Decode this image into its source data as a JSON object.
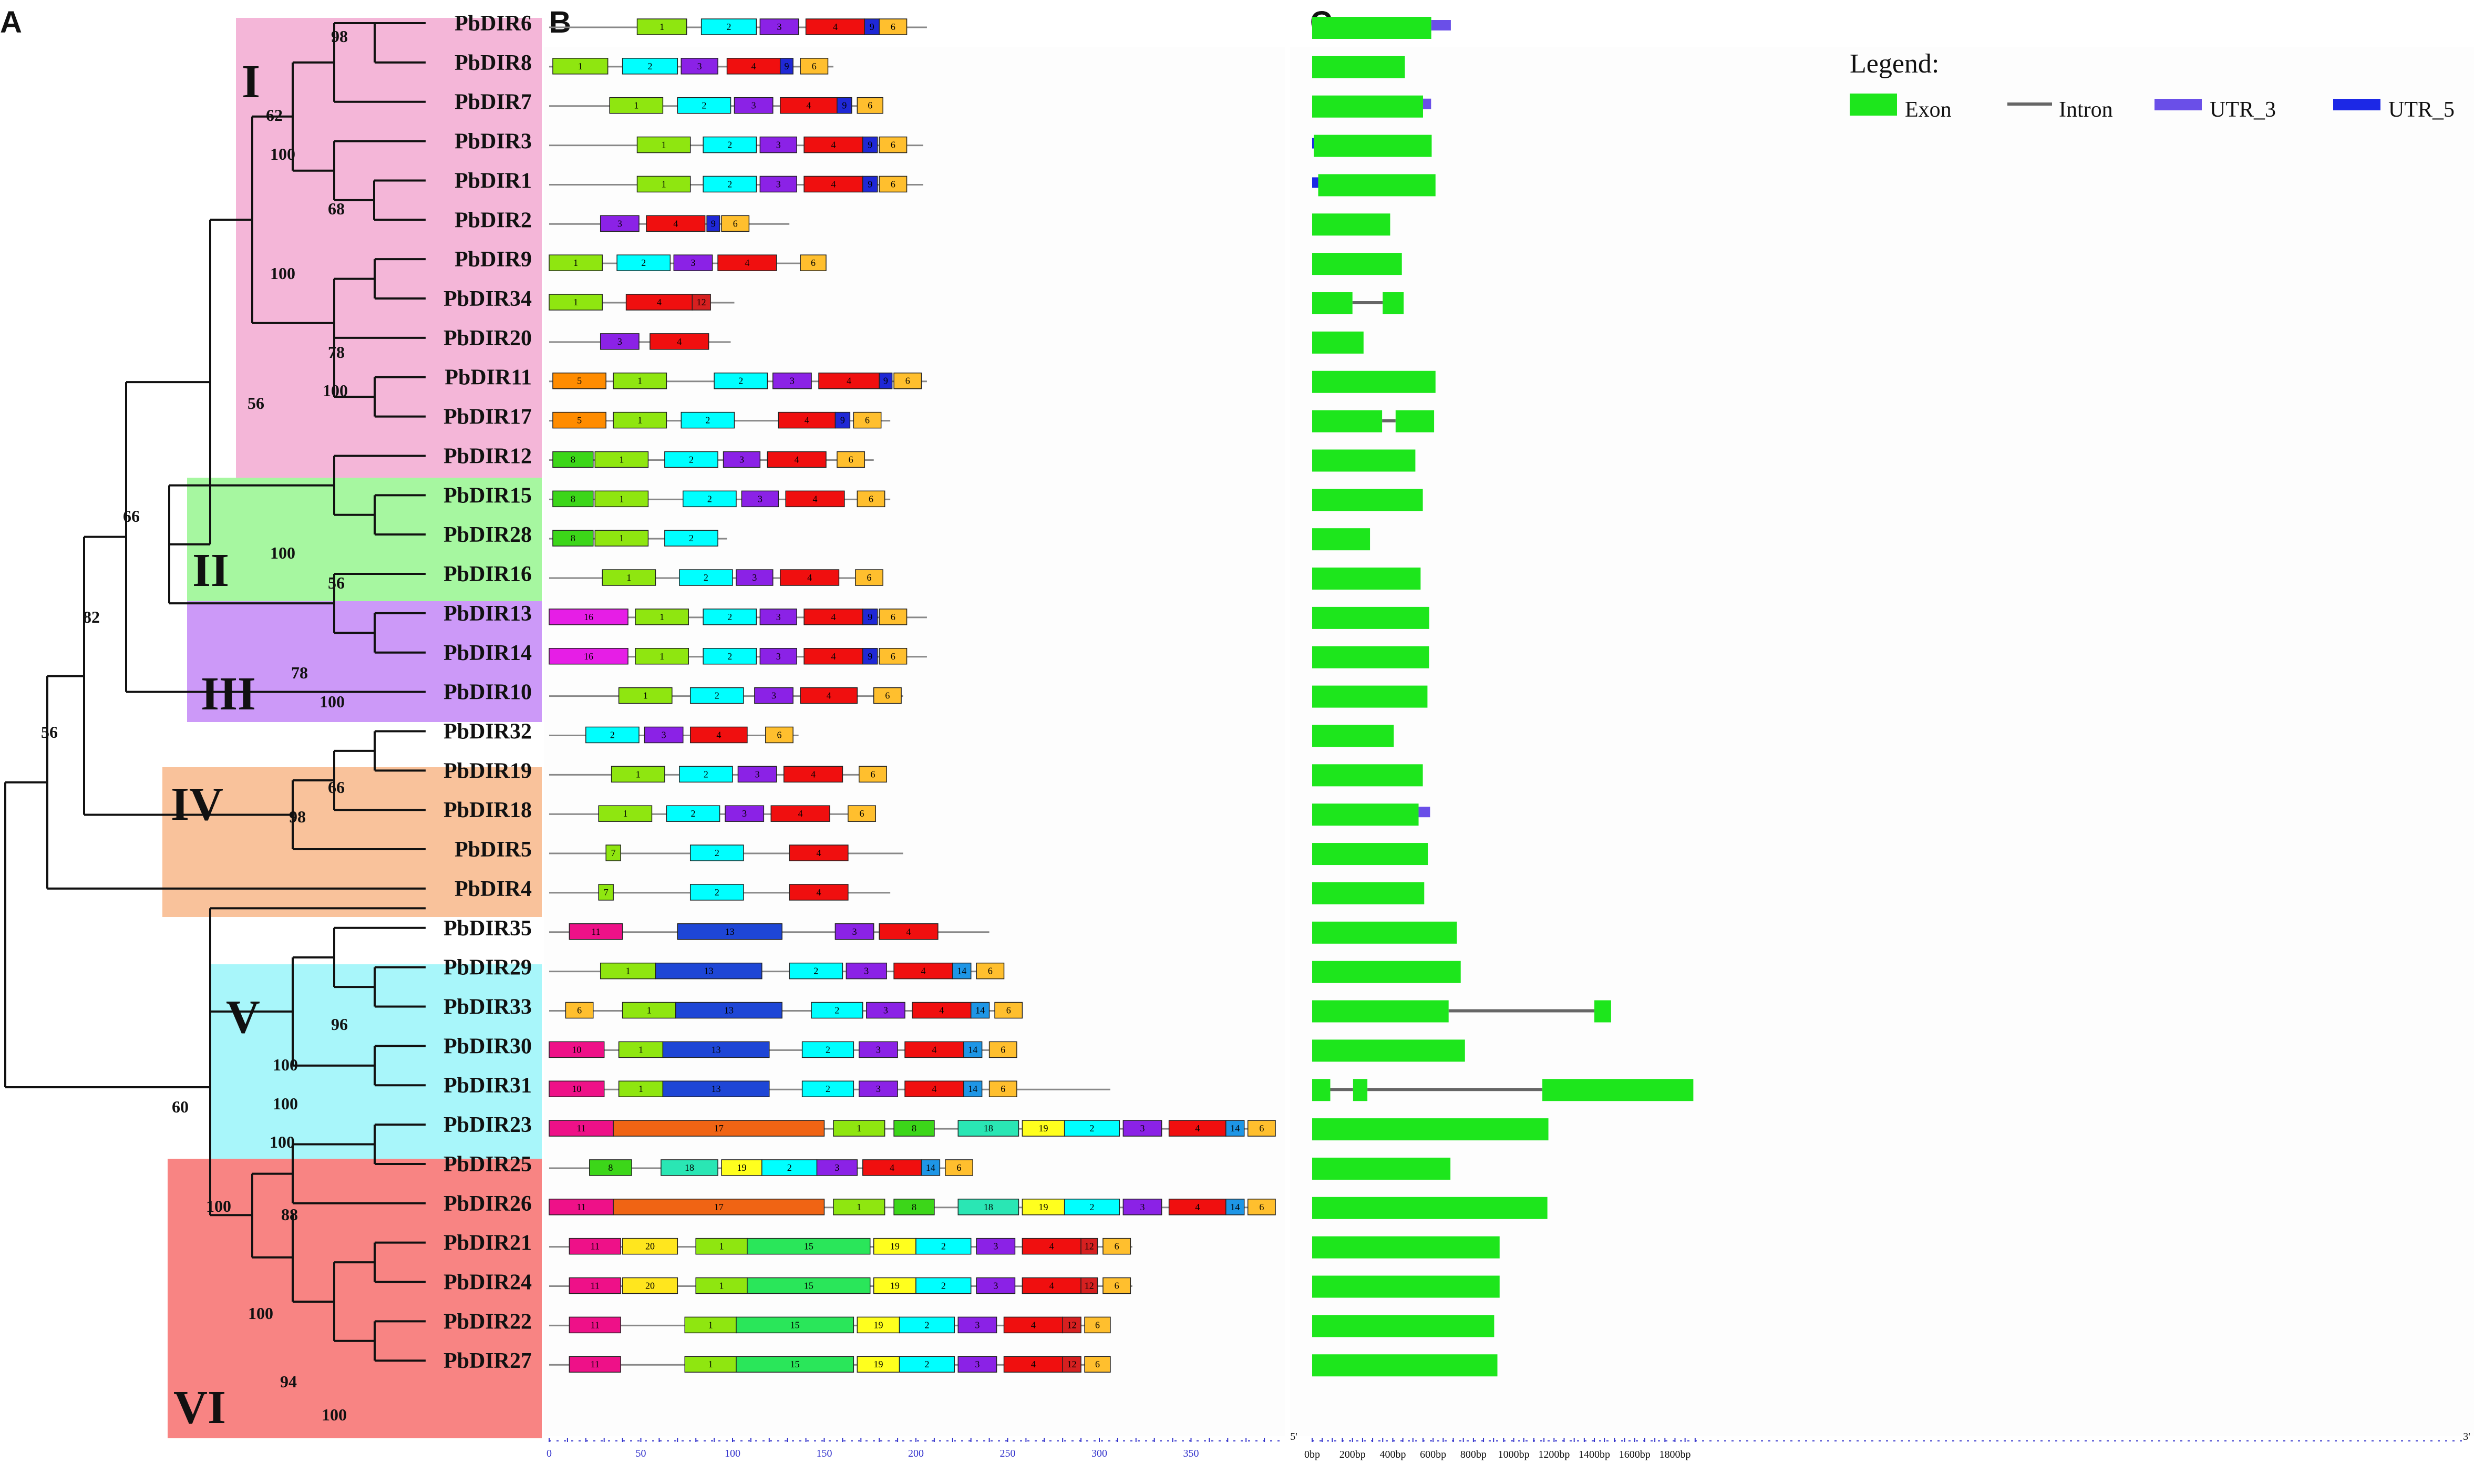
{
  "panels": {
    "a": "A",
    "b": "B",
    "c": "C"
  },
  "groups": [
    "I",
    "II",
    "III",
    "IV",
    "V",
    "VI"
  ],
  "groupColors": {
    "I": "#f4b6d8",
    "II": "#a6f7a0",
    "III": "#cc99f8",
    "IV": "#f9c29b",
    "V": "#a8f6fa",
    "VI": "#f88483"
  },
  "taxa": [
    "PbDIR6",
    "PbDIR8",
    "PbDIR7",
    "PbDIR3",
    "PbDIR1",
    "PbDIR2",
    "PbDIR9",
    "PbDIR34",
    "PbDIR20",
    "PbDIR11",
    "PbDIR17",
    "PbDIR12",
    "PbDIR15",
    "PbDIR28",
    "PbDIR16",
    "PbDIR13",
    "PbDIR14",
    "PbDIR10",
    "PbDIR32",
    "PbDIR19",
    "PbDIR18",
    "PbDIR5",
    "PbDIR4",
    "PbDIR35",
    "PbDIR29",
    "PbDIR33",
    "PbDIR30",
    "PbDIR31",
    "PbDIR23",
    "PbDIR25",
    "PbDIR26",
    "PbDIR21",
    "PbDIR24",
    "PbDIR22",
    "PbDIR27"
  ],
  "bootstrap": [
    "98",
    "62",
    "100",
    "68",
    "100",
    "56",
    "78",
    "100",
    "66",
    "100",
    "56",
    "82",
    "78",
    "100",
    "56",
    "66",
    "98",
    "96",
    "100",
    "100",
    "100",
    "60",
    "100",
    "88",
    "100",
    "94",
    "100"
  ],
  "motifColors": {
    "1": "#8fe610",
    "2": "#00ffff",
    "3": "#8b22e6",
    "4": "#f00f0f",
    "5": "#ff8c00",
    "6": "#ffbf2e",
    "7": "#8fe610",
    "8": "#3cd619",
    "9": "#1f28d6",
    "10": "#ee1188",
    "11": "#ee1188",
    "12": "#d62020",
    "13": "#1e46d6",
    "14": "#1e96e6",
    "15": "#2ae65a",
    "16": "#e61ee6",
    "17": "#f06414",
    "18": "#2ae6b4",
    "19": "#ffff1e",
    "20": "#ffe61e"
  },
  "motifs": [
    [
      [
        0,
        206
      ],
      [
        48,
        75,
        "1"
      ],
      [
        83,
        113,
        "2"
      ],
      [
        115,
        136,
        "3"
      ],
      [
        140,
        172,
        "4"
      ],
      [
        172,
        180,
        "9"
      ],
      [
        180,
        195,
        "6"
      ]
    ],
    [
      [
        0,
        155
      ],
      [
        2,
        32,
        "1"
      ],
      [
        40,
        70,
        "2"
      ],
      [
        72,
        92,
        "3"
      ],
      [
        97,
        126,
        "4"
      ],
      [
        126,
        133,
        "9"
      ],
      [
        137,
        152,
        "6"
      ]
    ],
    [
      [
        0,
        180
      ],
      [
        33,
        62,
        "1"
      ],
      [
        70,
        99,
        "2"
      ],
      [
        101,
        122,
        "3"
      ],
      [
        126,
        157,
        "4"
      ],
      [
        157,
        165,
        "9"
      ],
      [
        168,
        182,
        "6"
      ]
    ],
    [
      [
        0,
        204
      ],
      [
        48,
        77,
        "1"
      ],
      [
        84,
        113,
        "2"
      ],
      [
        115,
        135,
        "3"
      ],
      [
        139,
        171,
        "4"
      ],
      [
        171,
        179,
        "9"
      ],
      [
        180,
        195,
        "6"
      ]
    ],
    [
      [
        0,
        204
      ],
      [
        48,
        77,
        "1"
      ],
      [
        84,
        113,
        "2"
      ],
      [
        115,
        135,
        "3"
      ],
      [
        139,
        171,
        "4"
      ],
      [
        171,
        179,
        "9"
      ],
      [
        180,
        195,
        "6"
      ]
    ],
    [
      [
        0,
        131
      ],
      [
        28,
        49,
        "3"
      ],
      [
        53,
        85,
        "4"
      ],
      [
        86,
        93,
        "9"
      ],
      [
        94,
        109,
        "6"
      ]
    ],
    [
      [
        0,
        150
      ],
      [
        0,
        29,
        "1"
      ],
      [
        37,
        66,
        "2"
      ],
      [
        68,
        89,
        "3"
      ],
      [
        92,
        124,
        "4"
      ],
      [
        137,
        151,
        "6"
      ]
    ],
    [
      [
        0,
        101
      ],
      [
        0,
        29,
        "1"
      ],
      [
        42,
        78,
        "4"
      ],
      [
        78,
        88,
        "12"
      ]
    ],
    [
      [
        0,
        99
      ],
      [
        28,
        49,
        "3"
      ],
      [
        55,
        87,
        "4"
      ]
    ],
    [
      [
        0,
        206
      ],
      [
        2,
        31,
        "5"
      ],
      [
        35,
        64,
        "1"
      ],
      [
        90,
        119,
        "2"
      ],
      [
        122,
        143,
        "3"
      ],
      [
        147,
        180,
        "4"
      ],
      [
        180,
        187,
        "9"
      ],
      [
        188,
        203,
        "6"
      ]
    ],
    [
      [
        0,
        186
      ],
      [
        2,
        31,
        "5"
      ],
      [
        35,
        64,
        "1"
      ],
      [
        72,
        101,
        "2"
      ],
      [
        125,
        156,
        "4"
      ],
      [
        156,
        164,
        "9"
      ],
      [
        166,
        181,
        "6"
      ]
    ],
    [
      [
        0,
        177
      ],
      [
        2,
        24,
        "8"
      ],
      [
        25,
        54,
        "1"
      ],
      [
        63,
        92,
        "2"
      ],
      [
        95,
        115,
        "3"
      ],
      [
        119,
        151,
        "4"
      ],
      [
        157,
        172,
        "6"
      ]
    ],
    [
      [
        0,
        186
      ],
      [
        2,
        24,
        "8"
      ],
      [
        25,
        54,
        "1"
      ],
      [
        73,
        102,
        "2"
      ],
      [
        105,
        125,
        "3"
      ],
      [
        129,
        161,
        "4"
      ],
      [
        168,
        183,
        "6"
      ]
    ],
    [
      [
        0,
        97
      ],
      [
        2,
        24,
        "8"
      ],
      [
        25,
        54,
        "1"
      ],
      [
        63,
        92,
        "2"
      ]
    ],
    [
      [
        0,
        180
      ],
      [
        29,
        58,
        "1"
      ],
      [
        71,
        100,
        "2"
      ],
      [
        102,
        122,
        "3"
      ],
      [
        126,
        158,
        "4"
      ],
      [
        167,
        182,
        "6"
      ]
    ],
    [
      [
        0,
        206
      ],
      [
        0,
        43,
        "16"
      ],
      [
        47,
        76,
        "1"
      ],
      [
        84,
        113,
        "2"
      ],
      [
        115,
        135,
        "3"
      ],
      [
        139,
        171,
        "4"
      ],
      [
        171,
        179,
        "9"
      ],
      [
        180,
        195,
        "6"
      ]
    ],
    [
      [
        0,
        206
      ],
      [
        0,
        43,
        "16"
      ],
      [
        47,
        76,
        "1"
      ],
      [
        84,
        113,
        "2"
      ],
      [
        115,
        135,
        "3"
      ],
      [
        139,
        171,
        "4"
      ],
      [
        171,
        179,
        "9"
      ],
      [
        180,
        195,
        "6"
      ]
    ],
    [
      [
        0,
        193
      ],
      [
        38,
        67,
        "1"
      ],
      [
        77,
        106,
        "2"
      ],
      [
        112,
        133,
        "3"
      ],
      [
        137,
        168,
        "4"
      ],
      [
        177,
        192,
        "6"
      ]
    ],
    [
      [
        0,
        136
      ],
      [
        20,
        49,
        "2"
      ],
      [
        52,
        73,
        "3"
      ],
      [
        77,
        108,
        "4"
      ],
      [
        118,
        133,
        "6"
      ]
    ],
    [
      [
        0,
        180
      ],
      [
        34,
        63,
        "1"
      ],
      [
        71,
        100,
        "2"
      ],
      [
        103,
        124,
        "3"
      ],
      [
        128,
        160,
        "4"
      ],
      [
        169,
        184,
        "6"
      ]
    ],
    [
      [
        0,
        176
      ],
      [
        27,
        56,
        "1"
      ],
      [
        64,
        93,
        "2"
      ],
      [
        96,
        117,
        "3"
      ],
      [
        121,
        153,
        "4"
      ],
      [
        163,
        178,
        "6"
      ]
    ],
    [
      [
        0,
        193
      ],
      [
        31,
        39,
        "7"
      ],
      [
        77,
        106,
        "2"
      ],
      [
        131,
        163,
        "4"
      ]
    ],
    [
      [
        0,
        186
      ],
      [
        27,
        35,
        "7"
      ],
      [
        77,
        106,
        "2"
      ],
      [
        131,
        163,
        "4"
      ]
    ],
    [
      [
        0,
        240
      ],
      [
        11,
        40,
        "11"
      ],
      [
        70,
        127,
        "13"
      ],
      [
        156,
        177,
        "3"
      ],
      [
        180,
        212,
        "4"
      ]
    ],
    [
      [
        0,
        237
      ],
      [
        28,
        58,
        "1"
      ],
      [
        58,
        116,
        "13"
      ],
      [
        131,
        160,
        "2"
      ],
      [
        162,
        184,
        "3"
      ],
      [
        188,
        220,
        "4"
      ],
      [
        220,
        230,
        "14"
      ],
      [
        233,
        248,
        "6"
      ]
    ],
    [
      [
        0,
        253
      ],
      [
        9,
        24,
        "6"
      ],
      [
        40,
        69,
        "1"
      ],
      [
        69,
        127,
        "13"
      ],
      [
        143,
        171,
        "2"
      ],
      [
        173,
        194,
        "3"
      ],
      [
        198,
        230,
        "4"
      ],
      [
        230,
        240,
        "14"
      ],
      [
        243,
        258,
        "6"
      ]
    ],
    [
      [
        0,
        245
      ],
      [
        0,
        30,
        "10"
      ],
      [
        38,
        62,
        "1"
      ],
      [
        62,
        120,
        "13"
      ],
      [
        138,
        166,
        "2"
      ],
      [
        169,
        190,
        "3"
      ],
      [
        194,
        226,
        "4"
      ],
      [
        226,
        236,
        "14"
      ],
      [
        240,
        255,
        "6"
      ]
    ],
    [
      [
        0,
        306
      ],
      [
        0,
        30,
        "10"
      ],
      [
        38,
        62,
        "1"
      ],
      [
        62,
        120,
        "13"
      ],
      [
        138,
        166,
        "2"
      ],
      [
        169,
        190,
        "3"
      ],
      [
        194,
        226,
        "4"
      ],
      [
        226,
        236,
        "14"
      ],
      [
        240,
        255,
        "6"
      ]
    ],
    [
      [
        0,
        390
      ],
      [
        0,
        35,
        "11"
      ],
      [
        35,
        150,
        "17"
      ],
      [
        155,
        183,
        "1"
      ],
      [
        188,
        210,
        "8"
      ],
      [
        223,
        256,
        "18"
      ],
      [
        258,
        281,
        "19"
      ],
      [
        281,
        311,
        "2"
      ],
      [
        313,
        334,
        "3"
      ],
      [
        338,
        369,
        "4"
      ],
      [
        369,
        379,
        "14"
      ],
      [
        381,
        396,
        "6"
      ]
    ],
    [
      [
        0,
        229
      ],
      [
        22,
        45,
        "8"
      ],
      [
        61,
        92,
        "18"
      ],
      [
        94,
        116,
        "19"
      ],
      [
        116,
        146,
        "2"
      ],
      [
        146,
        168,
        "3"
      ],
      [
        171,
        203,
        "4"
      ],
      [
        203,
        213,
        "14"
      ],
      [
        216,
        231,
        "6"
      ]
    ],
    [
      [
        0,
        389
      ],
      [
        0,
        35,
        "11"
      ],
      [
        35,
        150,
        "17"
      ],
      [
        155,
        183,
        "1"
      ],
      [
        188,
        210,
        "8"
      ],
      [
        223,
        256,
        "18"
      ],
      [
        258,
        281,
        "19"
      ],
      [
        281,
        311,
        "2"
      ],
      [
        313,
        334,
        "3"
      ],
      [
        338,
        369,
        "4"
      ],
      [
        369,
        379,
        "14"
      ],
      [
        381,
        396,
        "6"
      ]
    ],
    [
      [
        0,
        318
      ],
      [
        11,
        39,
        "11"
      ],
      [
        40,
        70,
        "20"
      ],
      [
        80,
        108,
        "1"
      ],
      [
        108,
        175,
        "15"
      ],
      [
        177,
        200,
        "19"
      ],
      [
        200,
        230,
        "2"
      ],
      [
        233,
        254,
        "3"
      ],
      [
        258,
        290,
        "4"
      ],
      [
        290,
        299,
        "12"
      ],
      [
        302,
        317,
        "6"
      ]
    ],
    [
      [
        0,
        318
      ],
      [
        11,
        39,
        "11"
      ],
      [
        40,
        70,
        "20"
      ],
      [
        80,
        108,
        "1"
      ],
      [
        108,
        175,
        "15"
      ],
      [
        177,
        200,
        "19"
      ],
      [
        200,
        230,
        "2"
      ],
      [
        233,
        254,
        "3"
      ],
      [
        258,
        290,
        "4"
      ],
      [
        290,
        299,
        "12"
      ],
      [
        302,
        317,
        "6"
      ]
    ],
    [
      [
        0,
        300
      ],
      [
        11,
        39,
        "11"
      ],
      [
        74,
        102,
        "1"
      ],
      [
        102,
        166,
        "15"
      ],
      [
        168,
        191,
        "19"
      ],
      [
        191,
        221,
        "2"
      ],
      [
        223,
        244,
        "3"
      ],
      [
        248,
        280,
        "4"
      ],
      [
        280,
        290,
        "12"
      ],
      [
        292,
        306,
        "6"
      ]
    ],
    [
      [
        0,
        300
      ],
      [
        11,
        39,
        "11"
      ],
      [
        74,
        102,
        "1"
      ],
      [
        102,
        166,
        "15"
      ],
      [
        168,
        191,
        "19"
      ],
      [
        191,
        221,
        "2"
      ],
      [
        223,
        244,
        "3"
      ],
      [
        248,
        280,
        "4"
      ],
      [
        280,
        290,
        "12"
      ],
      [
        292,
        306,
        "6"
      ]
    ]
  ],
  "axisB": {
    "ticks": [
      "0",
      "50",
      "100",
      "150",
      "200",
      "250",
      "300",
      "350"
    ],
    "endLabel": "5'"
  },
  "geneStructures": [
    {
      "exons": [
        [
          0,
          591
        ]
      ],
      "utr3": [
        591,
        688
      ]
    },
    {
      "exons": [
        [
          0,
          460
        ]
      ]
    },
    {
      "exons": [
        [
          0,
          550
        ]
      ],
      "utr3": [
        550,
        590
      ]
    },
    {
      "exons": [
        [
          8,
          593
        ]
      ],
      "utr5": [
        0,
        8
      ]
    },
    {
      "exons": [
        [
          30,
          612
        ]
      ],
      "utr5": [
        0,
        30
      ]
    },
    {
      "exons": [
        [
          0,
          387
        ]
      ]
    },
    {
      "exons": [
        [
          0,
          445
        ]
      ]
    },
    {
      "exons": [
        [
          0,
          200
        ],
        [
          350,
          454
        ]
      ],
      "introns": [
        [
          200,
          350
        ]
      ]
    },
    {
      "exons": [
        [
          0,
          255
        ]
      ]
    },
    {
      "exons": [
        [
          0,
          612
        ]
      ]
    },
    {
      "exons": [
        [
          0,
          347
        ],
        [
          414,
          605
        ]
      ],
      "introns": [
        [
          347,
          414
        ]
      ]
    },
    {
      "exons": [
        [
          0,
          512
        ]
      ]
    },
    {
      "exons": [
        [
          0,
          549
        ]
      ]
    },
    {
      "exons": [
        [
          0,
          287
        ]
      ]
    },
    {
      "exons": [
        [
          0,
          538
        ]
      ]
    },
    {
      "exons": [
        [
          0,
          581
        ]
      ]
    },
    {
      "exons": [
        [
          0,
          580
        ]
      ]
    },
    {
      "exons": [
        [
          0,
          572
        ]
      ]
    },
    {
      "exons": [
        [
          0,
          405
        ]
      ]
    },
    {
      "exons": [
        [
          0,
          549
        ]
      ]
    },
    {
      "exons": [
        [
          0,
          528
        ]
      ],
      "utr3": [
        528,
        585
      ]
    },
    {
      "exons": [
        [
          0,
          574
        ]
      ]
    },
    {
      "exons": [
        [
          0,
          556
        ]
      ]
    },
    {
      "exons": [
        [
          0,
          718
        ]
      ]
    },
    {
      "exons": [
        [
          0,
          737
        ]
      ]
    },
    {
      "exons": [
        [
          0,
          677
        ],
        [
          1400,
          1483
        ]
      ],
      "introns": [
        [
          677,
          1400
        ]
      ]
    },
    {
      "exons": [
        [
          0,
          758
        ]
      ]
    },
    {
      "exons": [
        [
          0,
          90
        ],
        [
          203,
          274
        ],
        [
          1142,
          1891
        ]
      ],
      "introns": [
        [
          90,
          203
        ],
        [
          274,
          1142
        ]
      ]
    },
    {
      "exons": [
        [
          0,
          1172
        ]
      ]
    },
    {
      "exons": [
        [
          0,
          686
        ]
      ]
    },
    {
      "exons": [
        [
          0,
          1167
        ]
      ]
    },
    {
      "exons": [
        [
          0,
          930
        ]
      ]
    },
    {
      "exons": [
        [
          0,
          930
        ]
      ]
    },
    {
      "exons": [
        [
          0,
          903
        ]
      ]
    },
    {
      "exons": [
        [
          0,
          919
        ]
      ]
    }
  ],
  "axisC": {
    "ticks": [
      "0bp",
      "200bp",
      "400bp",
      "600bp",
      "800bp",
      "1000bp",
      "1200bp",
      "1400bp",
      "1600bp",
      "1800bp"
    ],
    "endLabel": "3'"
  },
  "legend": {
    "title": "Legend:",
    "items": [
      "Exon",
      "Intron",
      "UTR_3",
      "UTR_5"
    ]
  },
  "colors": {
    "exon": "#1de61c",
    "intron": "#666666",
    "utr3": "#6a4fe8",
    "utr5": "#1c28e6",
    "axis": "#3333cc",
    "tree": "#111111"
  }
}
